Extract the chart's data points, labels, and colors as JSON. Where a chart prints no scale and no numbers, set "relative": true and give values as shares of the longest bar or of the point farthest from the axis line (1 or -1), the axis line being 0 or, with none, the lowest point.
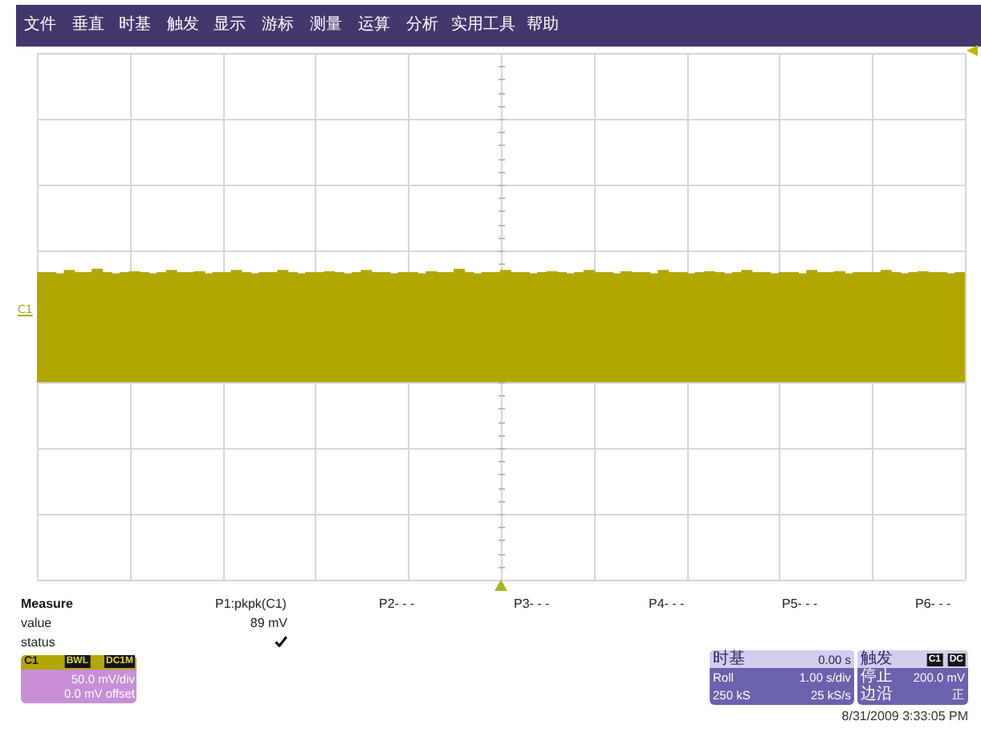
{
  "chart_data": {
    "type": "bar",
    "relative": true,
    "categories": [
      null,
      null,
      null,
      null,
      null,
      null,
      null,
      null,
      null,
      null,
      null,
      null,
      null,
      null,
      null,
      null,
      null,
      null,
      null,
      null,
      null,
      null,
      null,
      null,
      null,
      null,
      null,
      null,
      null,
      null,
      null,
      null,
      null,
      null,
      null,
      null,
      null,
      null,
      null,
      null,
      null,
      null,
      null,
      null,
      null,
      null,
      null,
      null,
      null,
      null,
      null,
      null,
      null,
      null,
      null,
      null,
      null,
      null,
      null,
      null,
      null,
      null,
      null,
      null,
      null,
      null,
      null,
      null,
      null,
      null,
      null,
      null,
      null,
      null,
      null,
      null,
      null,
      null,
      null,
      null,
      null,
      null,
      null,
      null,
      null,
      null,
      null,
      null,
      null,
      null,
      null,
      null,
      null,
      null,
      null,
      null,
      null,
      null,
      null,
      null
    ],
    "values": [
      0.97,
      0.97,
      0.96,
      0.99,
      0.97,
      0.97,
      1,
      0.97,
      0.96,
      0.97,
      0.98,
      0.97,
      0.96,
      0.97,
      0.99,
      0.97,
      0.97,
      0.98,
      0.96,
      0.97,
      0.97,
      0.99,
      0.97,
      0.96,
      0.97,
      0.97,
      0.99,
      0.97,
      0.96,
      0.97,
      0.97,
      0.98,
      0.97,
      0.96,
      0.97,
      0.99,
      0.97,
      0.97,
      0.96,
      0.97,
      0.97,
      0.96,
      0.98,
      0.97,
      0.97,
      1,
      0.97,
      0.96,
      0.97,
      0.97,
      0.99,
      0.97,
      0.97,
      0.96,
      0.97,
      0.98,
      0.97,
      0.96,
      0.97,
      0.99,
      0.97,
      0.97,
      0.96,
      0.98,
      0.97,
      0.97,
      0.96,
      0.99,
      0.97,
      0.97,
      0.96,
      0.97,
      0.98,
      0.97,
      0.96,
      0.97,
      0.99,
      0.97,
      0.97,
      0.96,
      0.97,
      0.97,
      0.96,
      0.99,
      0.97,
      0.97,
      0.98,
      0.96,
      0.97,
      0.97,
      0.97,
      0.99,
      0.97,
      0.96,
      0.97,
      0.98,
      0.97,
      0.97,
      0.96,
      0.97
    ],
    "color": "#b2a600",
    "grid": true,
    "tick_labels": false,
    "annotations": [
      "文件",
      "垂直",
      "时基",
      "触发",
      "显示",
      "游标",
      "测量",
      "运算",
      "分析",
      "实用工具",
      "帮助",
      "Measure",
      "value",
      "status",
      "P1:pkpk(C1)",
      "89 mV",
      "P2- - -",
      "P3- - -",
      "P4- - -",
      "P5- - -",
      "P6- - -",
      "C1",
      "BWL",
      "DC1M",
      "50.0 mV/div",
      "0.0 mV offset",
      "时基",
      "0.00 s",
      "Roll",
      "1.00 s/div",
      "250 kS",
      "25 kS/s",
      "触发",
      "C1",
      "DC",
      "停止",
      "200.0 mV",
      "边沿",
      "正",
      "8/31/2009 3:33:05 PM",
      "C1"
    ]
  }
}
